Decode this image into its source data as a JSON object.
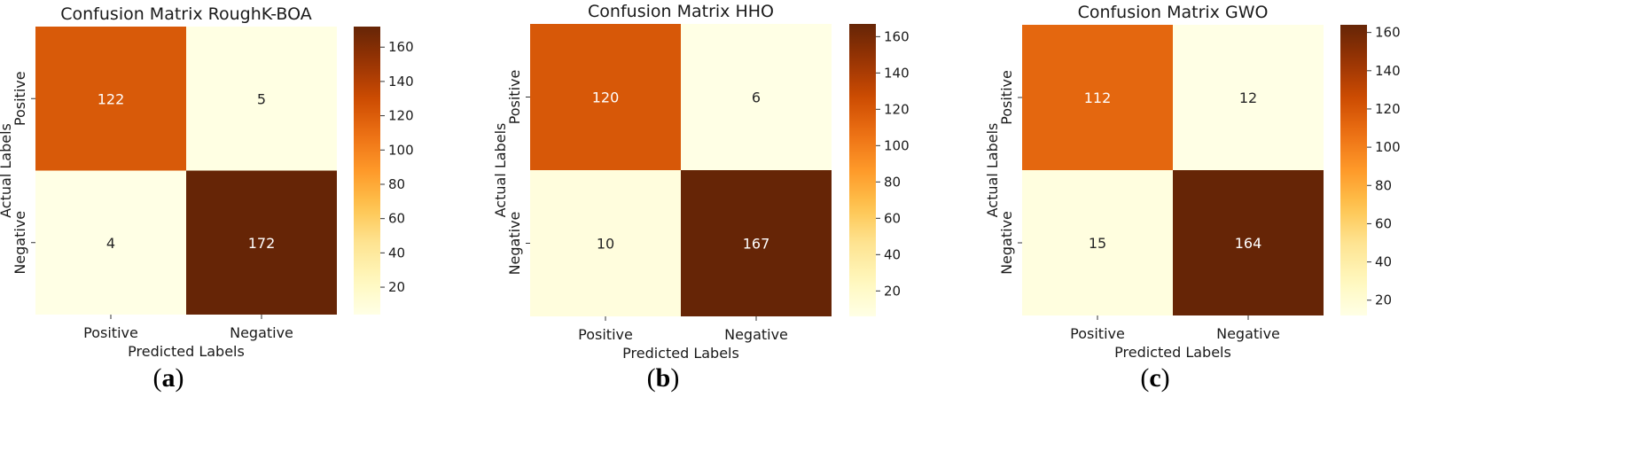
{
  "chart_data": [
    {
      "type": "heatmap",
      "title": "Confusion Matrix RoughK-BOA",
      "xlabel": "Predicted Labels",
      "ylabel": "Actual Labels",
      "x_categories": [
        "Positive",
        "Negative"
      ],
      "y_categories": [
        "Positive",
        "Negative"
      ],
      "values": [
        [
          122,
          5
        ],
        [
          4,
          172
        ]
      ],
      "colorbar": {
        "ticks": [
          20,
          40,
          60,
          80,
          100,
          120,
          140,
          160
        ],
        "range": [
          4,
          172
        ],
        "colormap": "YlOrBr"
      },
      "panel": {
        "open": "(",
        "letter": "a",
        "close": ")"
      }
    },
    {
      "type": "heatmap",
      "title": "Confusion Matrix HHO",
      "xlabel": "Predicted Labels",
      "ylabel": "Actual Labels",
      "x_categories": [
        "Positive",
        "Negative"
      ],
      "y_categories": [
        "Positive",
        "Negative"
      ],
      "values": [
        [
          120,
          6
        ],
        [
          10,
          167
        ]
      ],
      "colorbar": {
        "ticks": [
          20,
          40,
          60,
          80,
          100,
          120,
          140,
          160
        ],
        "range": [
          6,
          167
        ],
        "colormap": "YlOrBr"
      },
      "panel": {
        "open": "(",
        "letter": "b",
        "close": ")"
      }
    },
    {
      "type": "heatmap",
      "title": "Confusion Matrix GWO",
      "xlabel": "Predicted Labels",
      "ylabel": "Actual Labels",
      "x_categories": [
        "Positive",
        "Negative"
      ],
      "y_categories": [
        "Positive",
        "Negative"
      ],
      "values": [
        [
          112,
          12
        ],
        [
          15,
          164
        ]
      ],
      "colorbar": {
        "ticks": [
          20,
          40,
          60,
          80,
          100,
          120,
          140,
          160
        ],
        "range": [
          12,
          164
        ],
        "colormap": "YlOrBr"
      },
      "panel": {
        "open": "(",
        "letter": "c",
        "close": ")"
      }
    }
  ]
}
